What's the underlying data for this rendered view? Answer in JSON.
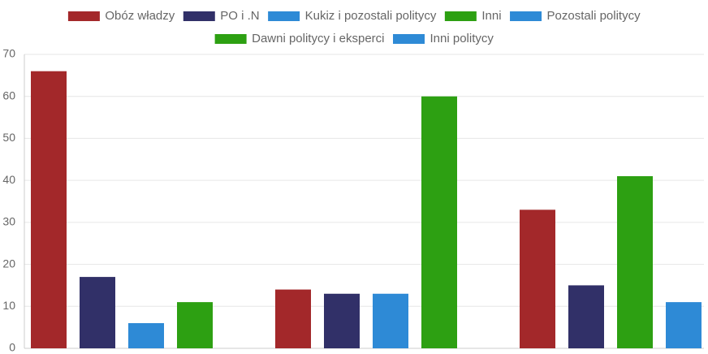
{
  "chart_data": {
    "type": "bar",
    "categories": [
      null,
      null,
      null
    ],
    "series": [
      {
        "name": "Obóz władzy",
        "color": "#a3282a",
        "values": [
          66,
          14,
          33
        ]
      },
      {
        "name": "PO i .N",
        "color": "#313068",
        "values": [
          17,
          13,
          15
        ]
      },
      {
        "name": "Kukiz i pozostali politycy",
        "color": "#2e8ad6",
        "values": [
          6,
          null,
          null
        ]
      },
      {
        "name": "Inni",
        "color": "#2da012",
        "values": [
          11,
          null,
          null
        ]
      },
      {
        "name": "Pozostali politycy",
        "color": "#2e8ad6",
        "values": [
          null,
          13,
          null
        ]
      },
      {
        "name": "Dawni politycy i eksperci",
        "color": "#2da012",
        "values": [
          null,
          60,
          41
        ]
      },
      {
        "name": "Inni politycy",
        "color": "#2e8ad6",
        "values": [
          null,
          null,
          11
        ]
      }
    ],
    "ylim": [
      0,
      70
    ],
    "yticks": [
      0,
      10,
      20,
      30,
      40,
      50,
      60,
      70
    ],
    "grid": true,
    "legend": "top"
  }
}
